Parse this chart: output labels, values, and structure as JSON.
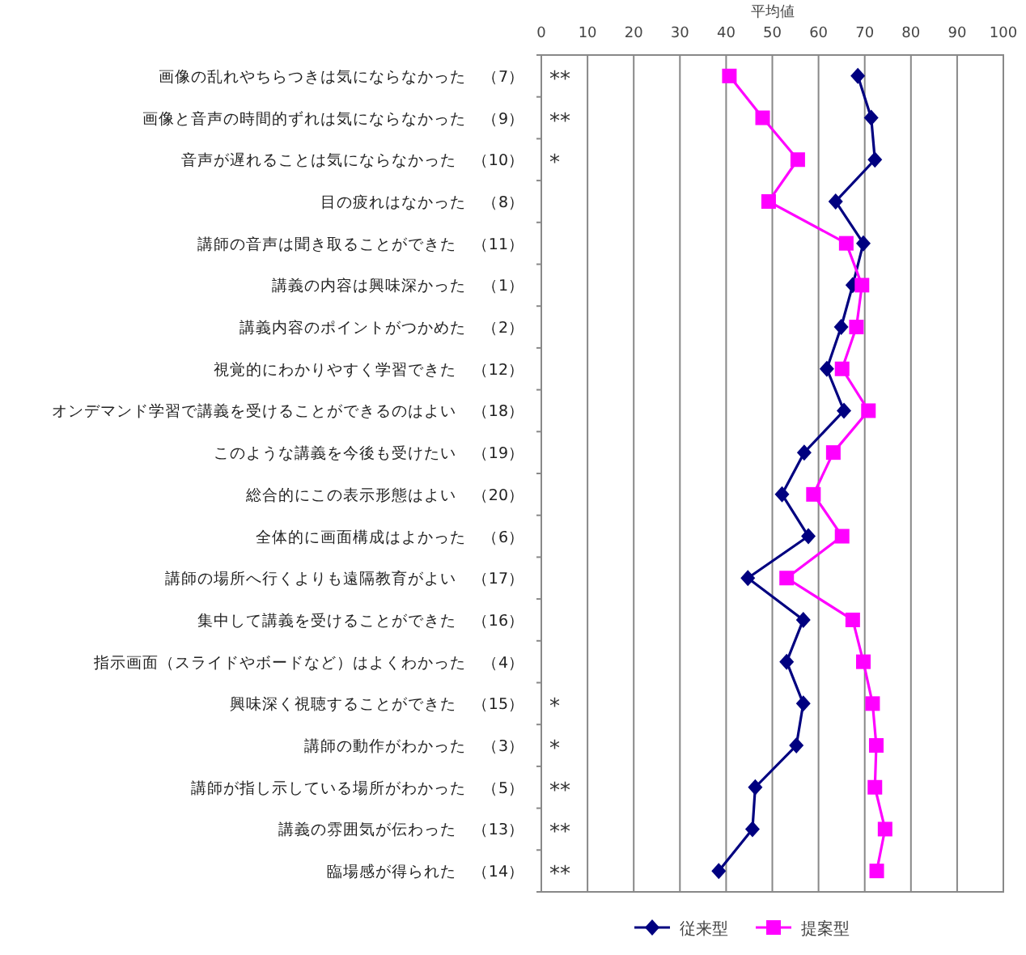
{
  "chart_data": {
    "type": "line",
    "orientation": "horizontal",
    "xlabel": "平均値",
    "categories": [
      "画像の乱れやちらつきは気にならなかった　（7）",
      "画像と音声の時間的ずれは気にならなかった　（9）",
      "音声が遅れることは気にならなかった　（10）",
      "目の疲れはなかった　（8）",
      "講師の音声は聞き取ることができた　（11）",
      "講義の内容は興味深かった　（1）",
      "講義内容のポイントがつかめた　（2）",
      "視覚的にわかりやすく学習できた　（12）",
      "オンデマンド学習で講義を受けることができるのはよい　（18）",
      "このような講義を今後も受けたい　（19）",
      "総合的にこの表示形態はよい　（20）",
      "全体的に画面構成はよかった　（6）",
      "講師の場所へ行くよりも遠隔教育がよい　（17）",
      "集中して講義を受けることができた　（16）",
      "指示画面（スライドやボードなど）はよくわかった　（4）",
      "興味深く視聴することができた　（15）",
      "講師の動作がわかった　（3）",
      "講師が指し示している場所がわかった　（5）",
      "講義の雰囲気が伝わった　（13）",
      "臨場感が得られた　（14）"
    ],
    "series": [
      {
        "name": "従来型",
        "color": "#000080",
        "marker": "diamond",
        "values": [
          68.5,
          71.4,
          72.2,
          63.7,
          69.7,
          67.4,
          64.9,
          61.8,
          65.5,
          56.9,
          52.1,
          57.8,
          44.7,
          56.7,
          53.1,
          56.7,
          55.2,
          46.3,
          45.7,
          38.4
        ]
      },
      {
        "name": "提案型",
        "color": "#ff00ff",
        "marker": "square",
        "values": [
          40.7,
          47.9,
          55.5,
          49.2,
          66.0,
          69.4,
          68.2,
          65.1,
          70.8,
          63.2,
          58.9,
          65.1,
          53.1,
          67.4,
          69.7,
          71.7,
          72.5,
          72.2,
          74.4,
          72.6
        ]
      }
    ],
    "xlim": [
      0,
      100
    ],
    "xticks": [
      0,
      10,
      20,
      30,
      40,
      50,
      60,
      70,
      80,
      90,
      100
    ],
    "grid": "x",
    "legend": "bottom",
    "annotations": [
      "**",
      "**",
      "*",
      "*",
      "*",
      "**",
      "**",
      "**"
    ]
  }
}
